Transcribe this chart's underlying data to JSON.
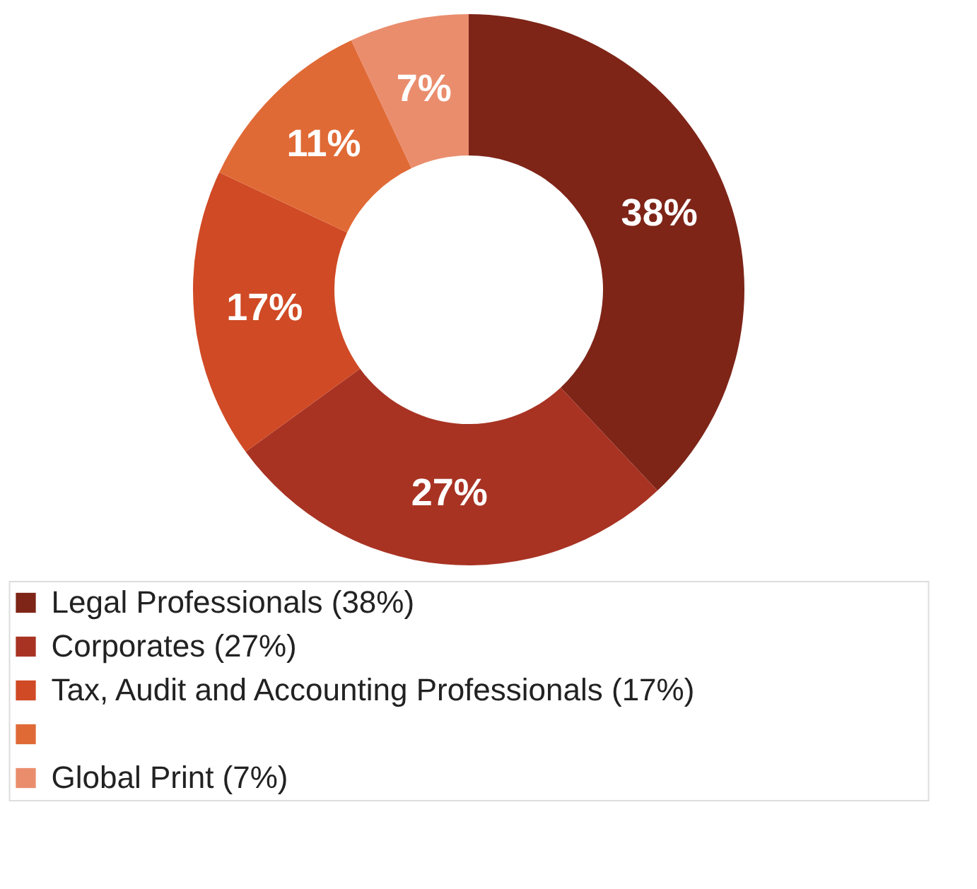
{
  "chart_data": {
    "type": "donut",
    "categories": [
      "Legal Professionals (38%)",
      "Corporates (27%)",
      "Tax, Audit and Accounting Professionals (17%)",
      null,
      "Global Print (7%)"
    ],
    "values": [
      38,
      27,
      17,
      11,
      7
    ],
    "value_labels": [
      "38%",
      "27%",
      "17%",
      "11%",
      "7%"
    ],
    "colors": [
      "#7e2518",
      "#a83323",
      "#d04a25",
      "#e06a36",
      "#ea8d6d"
    ],
    "legend": "bottom"
  }
}
